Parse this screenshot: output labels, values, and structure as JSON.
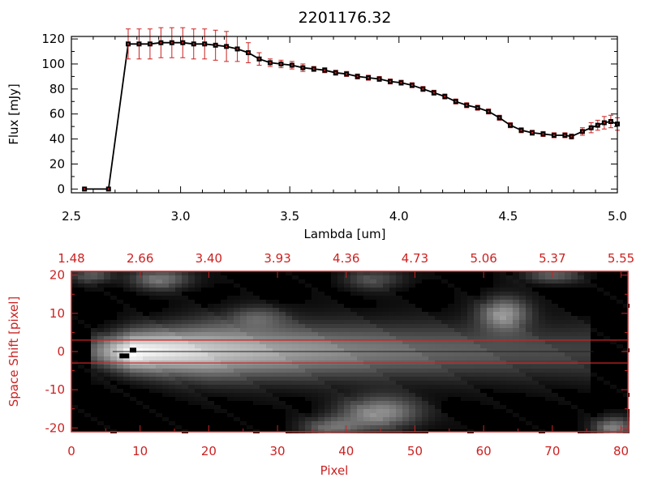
{
  "figure": {
    "title": "2201176.32"
  },
  "chart_data": [
    {
      "type": "line",
      "title": "2201176.32",
      "xlabel": "Lambda [um]",
      "ylabel": "Flux [mJy]",
      "xlim": [
        2.5,
        5.0
      ],
      "ylim": [
        -3,
        122
      ],
      "xticks": [
        "2.5",
        "3.0",
        "3.5",
        "4.0",
        "4.5",
        "5.0"
      ],
      "yticks": [
        "0",
        "20",
        "40",
        "60",
        "80",
        "100",
        "120"
      ],
      "grid": false,
      "colors": {
        "line": "#000000",
        "marker": "#000000",
        "errorbar": "#cc2222"
      },
      "series": [
        {
          "x": [
            2.56,
            2.67,
            2.76,
            2.81,
            2.86,
            2.91,
            2.96,
            3.01,
            3.06,
            3.11,
            3.16,
            3.21,
            3.26,
            3.31,
            3.36,
            3.41,
            3.46,
            3.51,
            3.56,
            3.61,
            3.66,
            3.71,
            3.76,
            3.81,
            3.86,
            3.91,
            3.96,
            4.01,
            4.06,
            4.11,
            4.16,
            4.21,
            4.26,
            4.31,
            4.36,
            4.41,
            4.46,
            4.51,
            4.56,
            4.61,
            4.66,
            4.71,
            4.76,
            4.79,
            4.84,
            4.88,
            4.91,
            4.94,
            4.97,
            5.0
          ],
          "y": [
            0,
            0,
            116,
            116,
            116,
            117,
            117,
            117,
            116,
            116,
            115,
            114,
            112,
            109,
            104,
            101,
            100,
            99,
            97,
            96,
            95,
            93,
            92,
            90,
            89,
            88,
            86,
            85,
            83,
            80,
            77,
            74,
            70,
            67,
            65,
            62,
            57,
            51,
            47,
            45,
            44,
            43,
            43,
            42,
            46,
            49,
            51,
            53,
            54,
            52
          ],
          "yerr": [
            0,
            0,
            12,
            12,
            12,
            12,
            12,
            12,
            12,
            12,
            12,
            12,
            10,
            8,
            5,
            3,
            3,
            3,
            3,
            2,
            2,
            2,
            2,
            2,
            2,
            2,
            2,
            2,
            2,
            2,
            2,
            2,
            2,
            2,
            2,
            2,
            2,
            2,
            2,
            2,
            2,
            2,
            2,
            2,
            3,
            4,
            4,
            5,
            5,
            5
          ]
        }
      ]
    },
    {
      "type": "heatmap",
      "xlabel": "Pixel",
      "ylabel": "Space Shift [pixel]",
      "xlim": [
        0,
        81
      ],
      "ylim": [
        -21,
        21
      ],
      "xticks": [
        "0",
        "10",
        "20",
        "30",
        "40",
        "50",
        "60",
        "70",
        "80"
      ],
      "yticks": [
        "-20",
        "-10",
        "0",
        "10",
        "20"
      ],
      "top_axis_ticks": [
        "1.48",
        "2.66",
        "3.40",
        "3.93",
        "4.36",
        "4.73",
        "5.06",
        "5.37",
        "5.55"
      ],
      "extraction_window": [
        -3,
        3
      ],
      "trace_center": 0,
      "colormap": "grayscale",
      "colors": {
        "axes": "#cc2222",
        "window_lines": "#cc2222",
        "background": "#000000"
      }
    }
  ]
}
